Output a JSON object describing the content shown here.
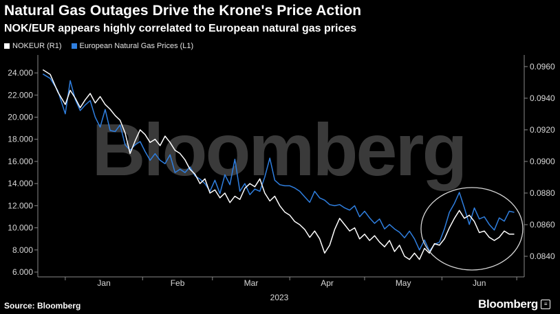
{
  "title": "Natural Gas Outages Drive the Krone's Price Action",
  "subtitle": "NOK/EUR appears highly correlated to European natural gas prices",
  "watermark": "Bloomberg",
  "source": "Source: Bloomberg",
  "logo": {
    "text": "Bloomberg",
    "icon": "bloomberg-terminal-icon"
  },
  "colors": {
    "background": "#000000",
    "nokeur": "#ffffff",
    "gas": "#2f7fe0",
    "annotation": "#d8d8d8"
  },
  "chart_data": {
    "type": "line",
    "x_label": "2023",
    "x_ticks": [
      "Jan",
      "Feb",
      "Mar",
      "Apr",
      "May",
      "Jun"
    ],
    "y_left": {
      "ticks": [
        "24.000",
        "22.000",
        "20.000",
        "18.000",
        "16.000",
        "14.000",
        "12.000",
        "10.000",
        "8.000",
        "6.000"
      ],
      "range": [
        6,
        25
      ]
    },
    "y_right": {
      "ticks": [
        "0.0960",
        "0.0940",
        "0.0920",
        "0.0900",
        "0.0880",
        "0.0860",
        "0.0840"
      ],
      "range": [
        0.083,
        0.0963
      ]
    },
    "legend": [
      "NOKEUR (R1)",
      "European Natural Gas Prices (L1)"
    ],
    "annotation": "ellipse around June data",
    "series": [
      {
        "name": "NOKEUR (R1)",
        "axis": "right",
        "x": [
          "2022-12-23",
          "2022-12-26",
          "2022-12-29",
          "2023-01-01",
          "2023-01-03",
          "2023-01-05",
          "2023-01-07",
          "2023-01-09",
          "2023-01-11",
          "2023-01-13",
          "2023-01-15",
          "2023-01-17",
          "2023-01-19",
          "2023-01-21",
          "2023-01-23",
          "2023-01-25",
          "2023-01-27",
          "2023-01-29",
          "2023-01-31",
          "2023-02-02",
          "2023-02-04",
          "2023-02-06",
          "2023-02-08",
          "2023-02-10",
          "2023-02-12",
          "2023-02-14",
          "2023-02-16",
          "2023-02-18",
          "2023-02-20",
          "2023-02-22",
          "2023-02-24",
          "2023-02-26",
          "2023-02-28",
          "2023-03-02",
          "2023-03-04",
          "2023-03-06",
          "2023-03-08",
          "2023-03-10",
          "2023-03-12",
          "2023-03-14",
          "2023-03-16",
          "2023-03-18",
          "2023-03-20",
          "2023-03-22",
          "2023-03-24",
          "2023-03-26",
          "2023-03-28",
          "2023-03-30",
          "2023-04-01",
          "2023-04-03",
          "2023-04-05",
          "2023-04-07",
          "2023-04-09",
          "2023-04-11",
          "2023-04-13",
          "2023-04-15",
          "2023-04-17",
          "2023-04-19",
          "2023-04-21",
          "2023-04-23",
          "2023-04-25",
          "2023-04-27",
          "2023-04-29",
          "2023-05-01",
          "2023-05-03",
          "2023-05-05",
          "2023-05-07",
          "2023-05-09",
          "2023-05-11",
          "2023-05-13",
          "2023-05-15",
          "2023-05-17",
          "2023-05-19",
          "2023-05-21",
          "2023-05-23",
          "2023-05-25",
          "2023-05-27",
          "2023-05-29",
          "2023-05-31",
          "2023-06-02",
          "2023-06-04",
          "2023-06-06",
          "2023-06-08",
          "2023-06-10",
          "2023-06-12",
          "2023-06-14",
          "2023-06-16",
          "2023-06-18",
          "2023-06-20",
          "2023-06-22",
          "2023-06-24",
          "2023-06-26",
          "2023-06-28",
          "2023-06-30"
        ],
        "values": [
          0.0958,
          0.0955,
          0.0944,
          0.0936,
          0.0945,
          0.094,
          0.0934,
          0.0939,
          0.0943,
          0.0937,
          0.0941,
          0.0936,
          0.0933,
          0.0929,
          0.0926,
          0.0918,
          0.0905,
          0.0913,
          0.092,
          0.0917,
          0.0912,
          0.0914,
          0.091,
          0.0916,
          0.0912,
          0.0907,
          0.0905,
          0.0901,
          0.0895,
          0.0892,
          0.0886,
          0.0889,
          0.088,
          0.0882,
          0.0877,
          0.088,
          0.0874,
          0.0878,
          0.0876,
          0.0883,
          0.0886,
          0.0884,
          0.0889,
          0.088,
          0.0875,
          0.0878,
          0.0872,
          0.0868,
          0.0866,
          0.0862,
          0.086,
          0.0857,
          0.0852,
          0.0856,
          0.0851,
          0.0842,
          0.0847,
          0.0857,
          0.0864,
          0.086,
          0.0856,
          0.0858,
          0.0851,
          0.0854,
          0.085,
          0.0853,
          0.0849,
          0.0846,
          0.085,
          0.0843,
          0.0847,
          0.084,
          0.0838,
          0.0842,
          0.0838,
          0.0845,
          0.0842,
          0.0848,
          0.0847,
          0.0851,
          0.0858,
          0.0864,
          0.0869,
          0.0864,
          0.0866,
          0.0862,
          0.0855,
          0.0856,
          0.0852,
          0.085,
          0.0852,
          0.0856,
          0.0854,
          0.0854
        ]
      },
      {
        "name": "European Natural Gas Prices (L1)",
        "axis": "left",
        "x": [
          "2022-12-23",
          "2022-12-26",
          "2022-12-29",
          "2023-01-01",
          "2023-01-03",
          "2023-01-05",
          "2023-01-07",
          "2023-01-09",
          "2023-01-11",
          "2023-01-13",
          "2023-01-15",
          "2023-01-17",
          "2023-01-19",
          "2023-01-21",
          "2023-01-23",
          "2023-01-25",
          "2023-01-27",
          "2023-01-29",
          "2023-01-31",
          "2023-02-02",
          "2023-02-04",
          "2023-02-06",
          "2023-02-08",
          "2023-02-10",
          "2023-02-12",
          "2023-02-14",
          "2023-02-16",
          "2023-02-18",
          "2023-02-20",
          "2023-02-22",
          "2023-02-24",
          "2023-02-26",
          "2023-02-28",
          "2023-03-02",
          "2023-03-04",
          "2023-03-06",
          "2023-03-08",
          "2023-03-10",
          "2023-03-12",
          "2023-03-14",
          "2023-03-16",
          "2023-03-18",
          "2023-03-20",
          "2023-03-22",
          "2023-03-24",
          "2023-03-26",
          "2023-03-28",
          "2023-03-30",
          "2023-04-01",
          "2023-04-03",
          "2023-04-05",
          "2023-04-07",
          "2023-04-09",
          "2023-04-11",
          "2023-04-13",
          "2023-04-15",
          "2023-04-17",
          "2023-04-19",
          "2023-04-21",
          "2023-04-23",
          "2023-04-25",
          "2023-04-27",
          "2023-04-29",
          "2023-05-01",
          "2023-05-03",
          "2023-05-05",
          "2023-05-07",
          "2023-05-09",
          "2023-05-11",
          "2023-05-13",
          "2023-05-15",
          "2023-05-17",
          "2023-05-19",
          "2023-05-21",
          "2023-05-23",
          "2023-05-25",
          "2023-05-27",
          "2023-05-29",
          "2023-05-31",
          "2023-06-02",
          "2023-06-04",
          "2023-06-06",
          "2023-06-08",
          "2023-06-10",
          "2023-06-12",
          "2023-06-14",
          "2023-06-16",
          "2023-06-18",
          "2023-06-20",
          "2023-06-22",
          "2023-06-24",
          "2023-06-26",
          "2023-06-28",
          "2023-06-30"
        ],
        "values": [
          23.9,
          23.5,
          22.4,
          20.3,
          23.3,
          21.6,
          20.6,
          21.1,
          21.5,
          20.0,
          19.1,
          20.7,
          18.8,
          18.7,
          19.3,
          17.5,
          17.0,
          17.5,
          17.8,
          16.9,
          16.1,
          16.7,
          16.1,
          15.8,
          16.6,
          15.0,
          15.3,
          15.0,
          15.5,
          14.7,
          14.4,
          14.0,
          13.3,
          14.3,
          13.1,
          14.8,
          13.9,
          16.2,
          13.3,
          14.0,
          13.0,
          13.5,
          13.3,
          14.6,
          16.3,
          14.3,
          13.9,
          13.8,
          13.8,
          13.6,
          13.3,
          12.8,
          12.3,
          13.3,
          12.7,
          12.5,
          12.1,
          12.0,
          12.1,
          11.8,
          11.6,
          12.0,
          11.0,
          11.5,
          10.9,
          10.4,
          10.8,
          9.9,
          10.3,
          9.9,
          9.6,
          9.1,
          9.7,
          9.0,
          8.0,
          8.9,
          7.9,
          8.5,
          8.7,
          9.9,
          11.4,
          12.2,
          13.2,
          11.8,
          10.3,
          11.8,
          10.8,
          11.0,
          10.3,
          9.8,
          10.9,
          10.6,
          11.5,
          11.4
        ]
      }
    ]
  }
}
